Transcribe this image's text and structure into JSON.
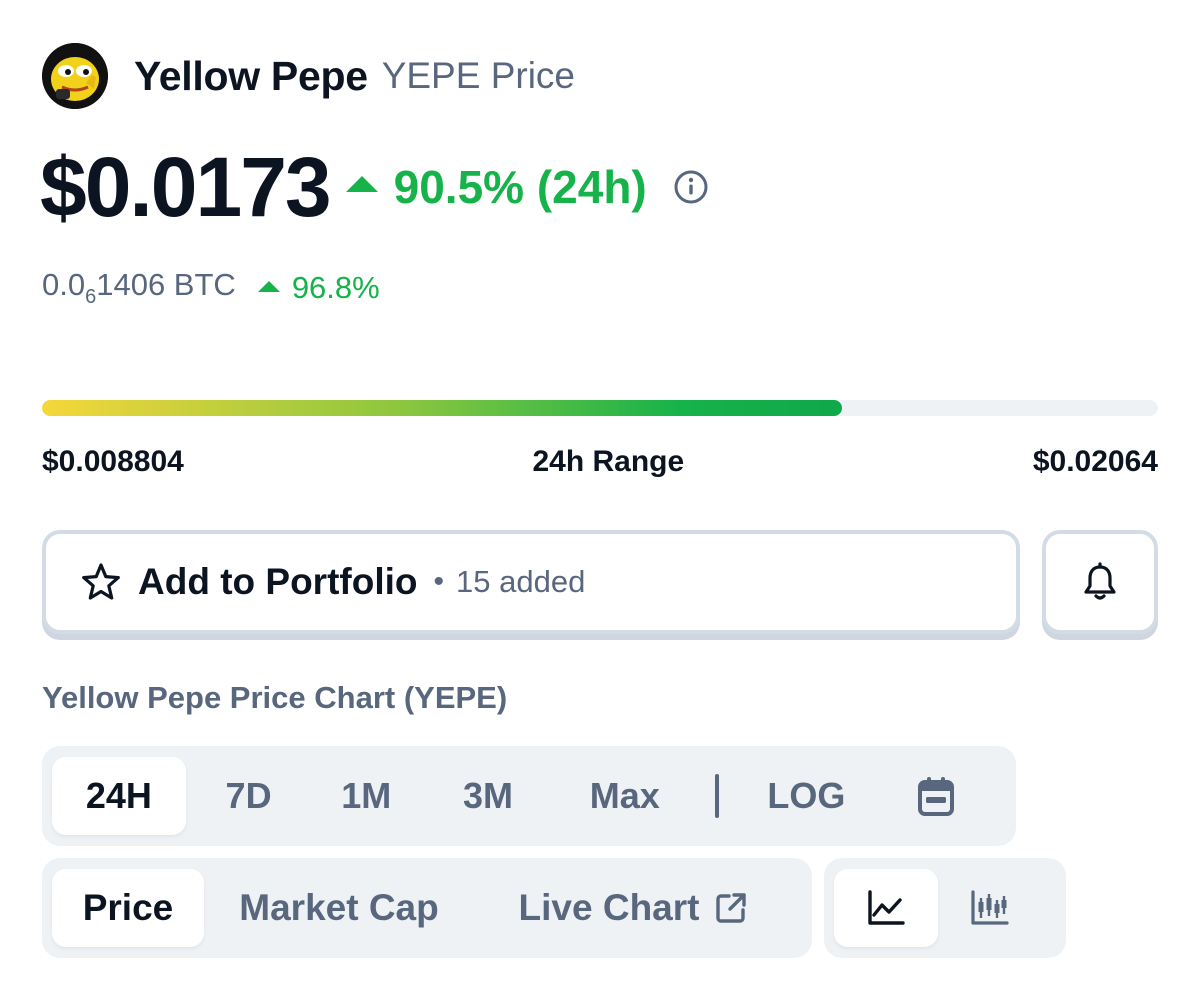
{
  "header": {
    "avatar_icon": "yellow-pepe-logo",
    "name": "Yellow Pepe",
    "subtitle": "YEPE Price"
  },
  "price": {
    "usd": "$0.0173",
    "change_24h": "90.5% (24h)",
    "change_direction": "up",
    "info_icon": "info-circle-icon"
  },
  "btc": {
    "prefix": "0.0",
    "subscript": "6",
    "rest": "1406 BTC",
    "change": "96.8%"
  },
  "range": {
    "low": "$0.008804",
    "label": "24h Range",
    "high": "$0.02064",
    "position_fraction": 0.717
  },
  "portfolio": {
    "label": "Add to Portfolio",
    "separator": "•",
    "count": "15 added",
    "star_icon": "star-icon",
    "bell_icon": "bell-icon"
  },
  "chart_section": {
    "title": "Yellow Pepe Price Chart (YEPE)",
    "range_tabs": [
      "24H",
      "7D",
      "1M",
      "3M",
      "Max"
    ],
    "active_range": "24H",
    "log_label": "LOG",
    "calendar_icon": "calendar-icon",
    "type_tabs": {
      "price": "Price",
      "market_cap": "Market Cap",
      "live_chart": "Live Chart"
    },
    "active_type": "Price",
    "external_icon": "external-link-icon",
    "view_icons": [
      "line-chart-icon",
      "candlestick-chart-icon"
    ],
    "active_view": "line-chart-icon"
  },
  "colors": {
    "positive": "#16b24a",
    "text_primary": "#0d1421",
    "text_secondary": "#58667e",
    "surface": "#eff2f5"
  }
}
